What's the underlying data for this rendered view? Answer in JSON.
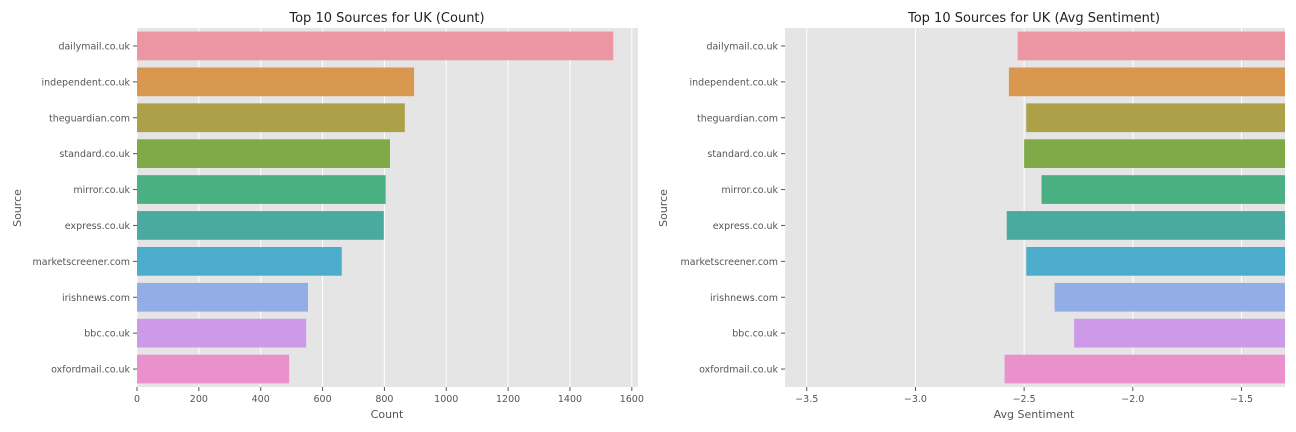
{
  "chart_data": [
    {
      "type": "bar",
      "orientation": "horizontal",
      "title": "Top 10 Sources for UK (Count)",
      "xlabel": "Count",
      "ylabel": "Source",
      "categories": [
        "dailymail.co.uk",
        "independent.co.uk",
        "theguardian.com",
        "standard.co.uk",
        "mirror.co.uk",
        "express.co.uk",
        "marketscreener.com",
        "irishnews.com",
        "bbc.co.uk",
        "oxfordmail.co.uk"
      ],
      "values": [
        1540,
        896,
        866,
        818,
        804,
        798,
        662,
        553,
        547,
        492
      ],
      "xlim": [
        0,
        1620
      ],
      "xticks": [
        0,
        200,
        400,
        600,
        800,
        1000,
        1200,
        1400,
        1600
      ],
      "xtick_labels": [
        "0",
        "200",
        "400",
        "600",
        "800",
        "1000",
        "1200",
        "1400",
        "1600"
      ],
      "grid": true
    },
    {
      "type": "bar",
      "orientation": "horizontal",
      "title": "Top 10 Sources for UK (Avg Sentiment)",
      "xlabel": "Avg Sentiment",
      "ylabel": "Source",
      "categories": [
        "dailymail.co.uk",
        "independent.co.uk",
        "theguardian.com",
        "standard.co.uk",
        "mirror.co.uk",
        "express.co.uk",
        "marketscreener.com",
        "irishnews.com",
        "bbc.co.uk",
        "oxfordmail.co.uk"
      ],
      "values": [
        -2.53,
        -2.57,
        -2.49,
        -2.5,
        -2.42,
        -2.58,
        -2.49,
        -2.36,
        -2.27,
        -2.59
      ],
      "xlim": [
        -3.6,
        -1.3
      ],
      "xticks": [
        -3.5,
        -3.0,
        -2.5,
        -2.0,
        -1.5
      ],
      "xtick_labels": [
        "−3.5",
        "−3.0",
        "−2.5",
        "−2.0",
        "−1.5"
      ],
      "grid": true
    }
  ],
  "colors": [
    "#ec96a3",
    "#d89850",
    "#aca049",
    "#7faa47",
    "#4ab082",
    "#4aaa9f",
    "#4caccb",
    "#93aee6",
    "#cc9ae8",
    "#ea90cc"
  ],
  "plot_bg": "#e5e5e5",
  "grid_color": "#ffffff"
}
